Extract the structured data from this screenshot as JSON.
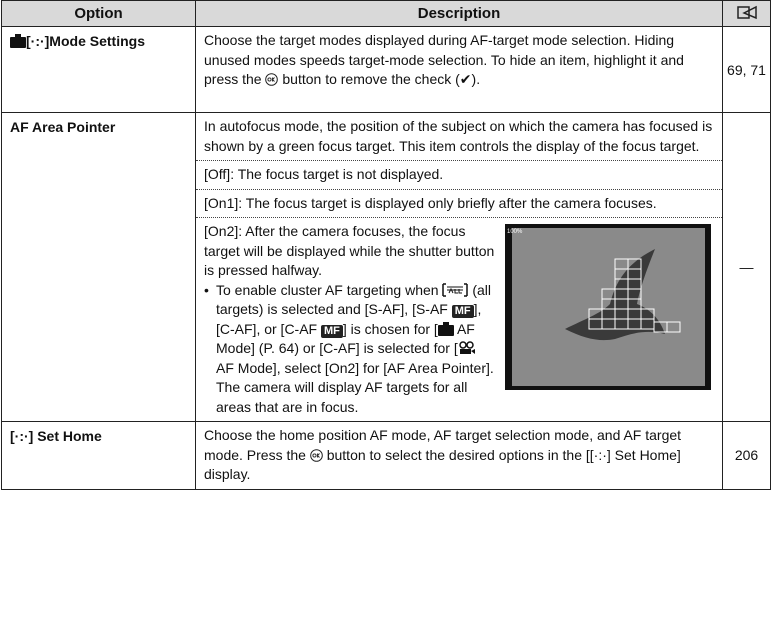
{
  "table": {
    "header": [
      "Option",
      "Description"
    ],
    "rows": [
      {
        "option": "[·:·]Mode Settings",
        "description": [
          "Choose the target modes displayed during AF-target mode selection. Hiding unused modes speeds target-mode selection. To hide an item, highlight it and press the ",
          " button to remove the check (✔)."
        ],
        "ref": "69, 71"
      },
      {
        "option": "AF Area Pointer",
        "intro": "In autofocus mode, the position of the subject on which the camera has focused is shown by a green focus target. This item controls the display of the focus target.",
        "off": "[Off]: The focus target is not displayed.",
        "on1": "[On1]: The focus target is displayed only briefly after the camera focuses.",
        "on2": "[On2]: After the camera focuses, the focus target will be displayed while the shutter button is pressed halfway.",
        "bullet": [
          "To enable cluster AF targeting when ",
          " (all targets) is selected and [S-AF], [S-AF ",
          "], [C-AF], or [C-AF ",
          "] is chosen for [",
          " AF Mode] (P. 64) or [C-AF] is selected for [",
          " AF Mode], select [On2] for [AF Area Pointer]. The camera will display AF targets for all areas that are in focus."
        ],
        "badge": "MF",
        "image_label": "100%",
        "ref": "—"
      },
      {
        "option": "[·:·] Set Home",
        "description": [
          "Choose the home position AF mode, AF target selection mode, and AF target mode. Press the ",
          " button to select the desired options in the [[·:·] Set Home] display."
        ],
        "ref": "206"
      }
    ]
  }
}
